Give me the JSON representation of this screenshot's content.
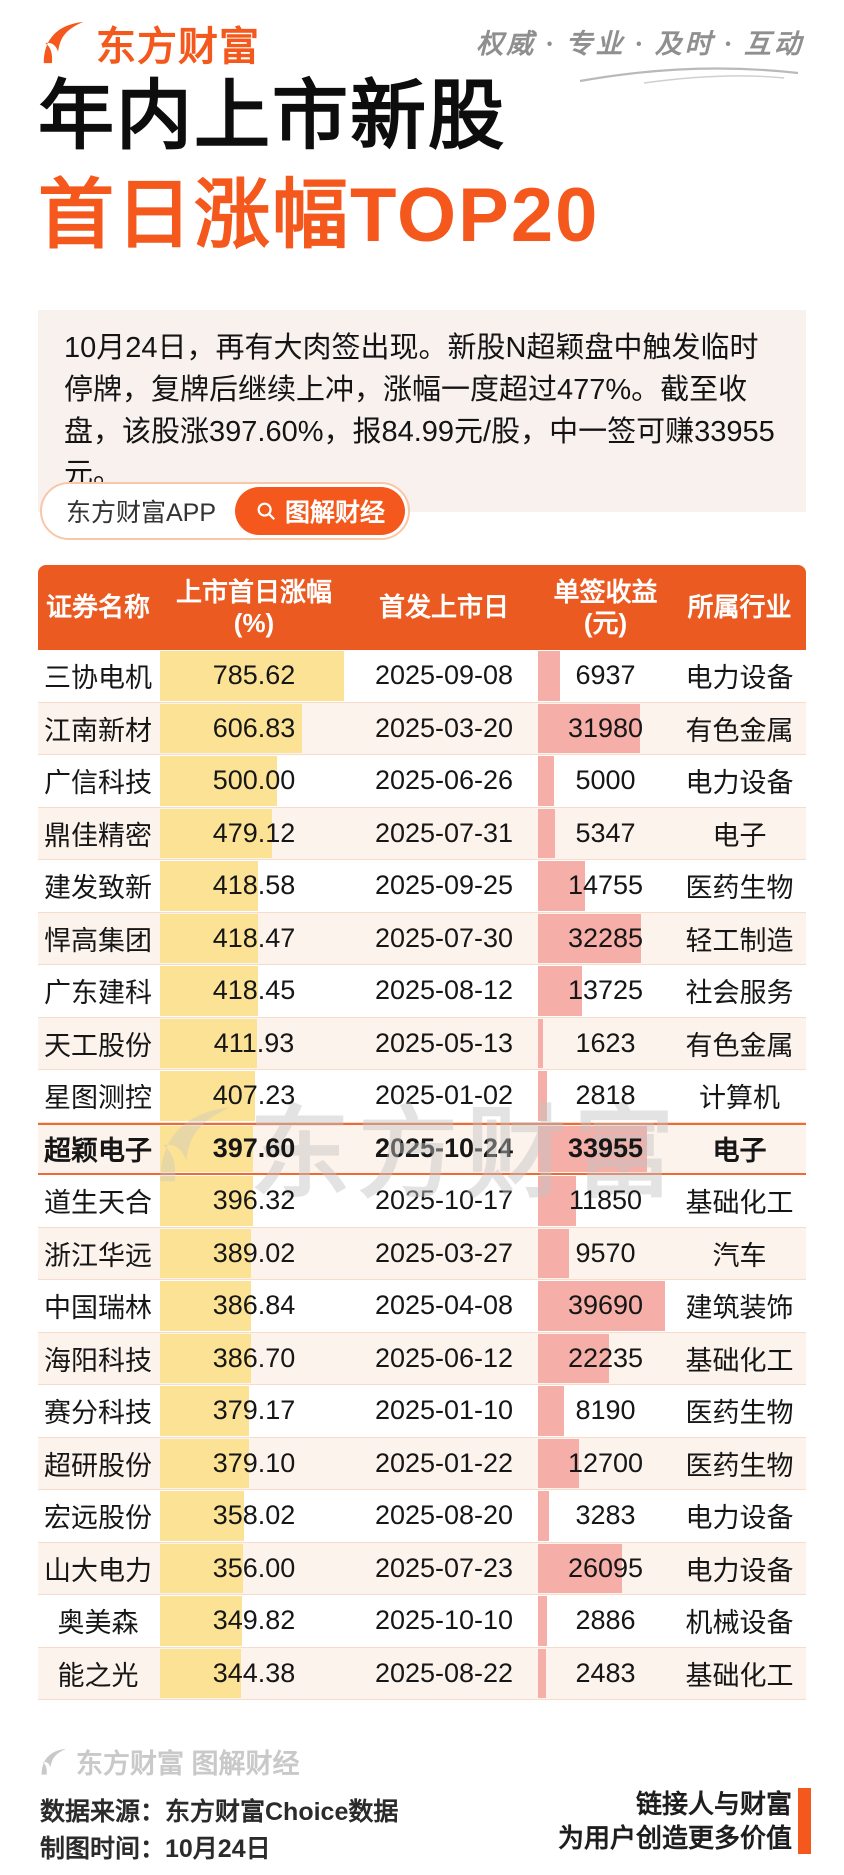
{
  "brand": {
    "logo_text": "东方财富",
    "slogan": "权威 · 专业 · 及时 · 互动"
  },
  "title": {
    "line1": "年内上市新股",
    "line2": "首日涨幅TOP20"
  },
  "intro": {
    "text": "10月24日，再有大肉签出现。新股N超颖盘中触发临时停牌，复牌后继续上冲，涨幅一度超过477%。截至收盘，该股涨397.60%，报84.99元/股，中一签可赚33955元。"
  },
  "cta": {
    "app_label": "东方财富APP",
    "button_label": "图解财经",
    "icon": "search-icon"
  },
  "table": {
    "headers": [
      {
        "label": "证券名称",
        "unit": ""
      },
      {
        "label": "上市首日涨幅",
        "unit": "(%)"
      },
      {
        "label": "首发上市日",
        "unit": ""
      },
      {
        "label": "单签收益",
        "unit": "(元)"
      },
      {
        "label": "所属行业",
        "unit": ""
      }
    ],
    "rows": [
      {
        "name": "三协电机",
        "pct": "785.62",
        "date": "2025-09-08",
        "income": "6937",
        "industry": "电力设备",
        "highlight": false
      },
      {
        "name": "江南新材",
        "pct": "606.83",
        "date": "2025-03-20",
        "income": "31980",
        "industry": "有色金属",
        "highlight": false
      },
      {
        "name": "广信科技",
        "pct": "500.00",
        "date": "2025-06-26",
        "income": "5000",
        "industry": "电力设备",
        "highlight": false
      },
      {
        "name": "鼎佳精密",
        "pct": "479.12",
        "date": "2025-07-31",
        "income": "5347",
        "industry": "电子",
        "highlight": false
      },
      {
        "name": "建发致新",
        "pct": "418.58",
        "date": "2025-09-25",
        "income": "14755",
        "industry": "医药生物",
        "highlight": false
      },
      {
        "name": "悍高集团",
        "pct": "418.47",
        "date": "2025-07-30",
        "income": "32285",
        "industry": "轻工制造",
        "highlight": false
      },
      {
        "name": "广东建科",
        "pct": "418.45",
        "date": "2025-08-12",
        "income": "13725",
        "industry": "社会服务",
        "highlight": false
      },
      {
        "name": "天工股份",
        "pct": "411.93",
        "date": "2025-05-13",
        "income": "1623",
        "industry": "有色金属",
        "highlight": false
      },
      {
        "name": "星图测控",
        "pct": "407.23",
        "date": "2025-01-02",
        "income": "2818",
        "industry": "计算机",
        "highlight": false
      },
      {
        "name": "超颖电子",
        "pct": "397.60",
        "date": "2025-10-24",
        "income": "33955",
        "industry": "电子",
        "highlight": true
      },
      {
        "name": "道生天合",
        "pct": "396.32",
        "date": "2025-10-17",
        "income": "11850",
        "industry": "基础化工",
        "highlight": false
      },
      {
        "name": "浙江华远",
        "pct": "389.02",
        "date": "2025-03-27",
        "income": "9570",
        "industry": "汽车",
        "highlight": false
      },
      {
        "name": "中国瑞林",
        "pct": "386.84",
        "date": "2025-04-08",
        "income": "39690",
        "industry": "建筑装饰",
        "highlight": false
      },
      {
        "name": "海阳科技",
        "pct": "386.70",
        "date": "2025-06-12",
        "income": "22235",
        "industry": "基础化工",
        "highlight": false
      },
      {
        "name": "赛分科技",
        "pct": "379.17",
        "date": "2025-01-10",
        "income": "8190",
        "industry": "医药生物",
        "highlight": false
      },
      {
        "name": "超研股份",
        "pct": "379.10",
        "date": "2025-01-22",
        "income": "12700",
        "industry": "医药生物",
        "highlight": false
      },
      {
        "name": "宏远股份",
        "pct": "358.02",
        "date": "2025-08-20",
        "income": "3283",
        "industry": "电力设备",
        "highlight": false
      },
      {
        "name": "山大电力",
        "pct": "356.00",
        "date": "2025-07-23",
        "income": "26095",
        "industry": "电力设备",
        "highlight": false
      },
      {
        "name": "奥美森",
        "pct": "349.82",
        "date": "2025-10-10",
        "income": "2886",
        "industry": "机械设备",
        "highlight": false
      },
      {
        "name": "能之光",
        "pct": "344.38",
        "date": "2025-08-22",
        "income": "2483",
        "industry": "基础化工",
        "highlight": false
      }
    ]
  },
  "chart_data": {
    "type": "table",
    "title": "年内上市新股首日涨幅TOP20",
    "columns": [
      "证券名称",
      "上市首日涨幅(%)",
      "首发上市日",
      "单签收益(元)",
      "所属行业"
    ],
    "rows": [
      [
        "三协电机",
        785.62,
        "2025-09-08",
        6937,
        "电力设备"
      ],
      [
        "江南新材",
        606.83,
        "2025-03-20",
        31980,
        "有色金属"
      ],
      [
        "广信科技",
        500.0,
        "2025-06-26",
        5000,
        "电力设备"
      ],
      [
        "鼎佳精密",
        479.12,
        "2025-07-31",
        5347,
        "电子"
      ],
      [
        "建发致新",
        418.58,
        "2025-09-25",
        14755,
        "医药生物"
      ],
      [
        "悍高集团",
        418.47,
        "2025-07-30",
        32285,
        "轻工制造"
      ],
      [
        "广东建科",
        418.45,
        "2025-08-12",
        13725,
        "社会服务"
      ],
      [
        "天工股份",
        411.93,
        "2025-05-13",
        1623,
        "有色金属"
      ],
      [
        "星图测控",
        407.23,
        "2025-01-02",
        2818,
        "计算机"
      ],
      [
        "超颖电子",
        397.6,
        "2025-10-24",
        33955,
        "电子"
      ],
      [
        "道生天合",
        396.32,
        "2025-10-17",
        11850,
        "基础化工"
      ],
      [
        "浙江华远",
        389.02,
        "2025-03-27",
        9570,
        "汽车"
      ],
      [
        "中国瑞林",
        386.84,
        "2025-04-08",
        39690,
        "建筑装饰"
      ],
      [
        "海阳科技",
        386.7,
        "2025-06-12",
        22235,
        "基础化工"
      ],
      [
        "赛分科技",
        379.17,
        "2025-01-10",
        8190,
        "医药生物"
      ],
      [
        "超研股份",
        379.1,
        "2025-01-22",
        12700,
        "医药生物"
      ],
      [
        "宏远股份",
        358.02,
        "2025-08-20",
        3283,
        "电力设备"
      ],
      [
        "山大电力",
        356.0,
        "2025-07-23",
        26095,
        "电力设备"
      ],
      [
        "奥美森",
        349.82,
        "2025-10-10",
        2886,
        "机械设备"
      ],
      [
        "能之光",
        344.38,
        "2025-08-22",
        2483,
        "基础化工"
      ]
    ],
    "highlighted_row": "超颖电子",
    "bar_encodings": {
      "上市首日涨幅(%)": {
        "style": "yellow data bar",
        "color": "#FBE295",
        "max": 785.62
      },
      "单签收益(元)": {
        "style": "pink data bar",
        "color": "#F6AFA8",
        "max": 39690
      }
    }
  },
  "watermark": {
    "table_text": "东方财富"
  },
  "footer": {
    "watermark_text": "东方财富 图解财经",
    "source": "数据来源：东方财富Choice数据",
    "time": "制图时间：10月24日",
    "right_line1": "链接人与财富",
    "right_line2": "为用户创造更多价值"
  },
  "colors": {
    "brand_orange": "#F4581C",
    "header_orange": "#EB5A20",
    "gain_bar_yellow": "#FBE295",
    "profit_bar_pink": "#F6AFA8",
    "row_alt_bg": "#FDF3ED",
    "row_divider": "#F8DCCB",
    "highlight_border": "#ED6B35",
    "intro_bg": "#F9F1EE"
  }
}
